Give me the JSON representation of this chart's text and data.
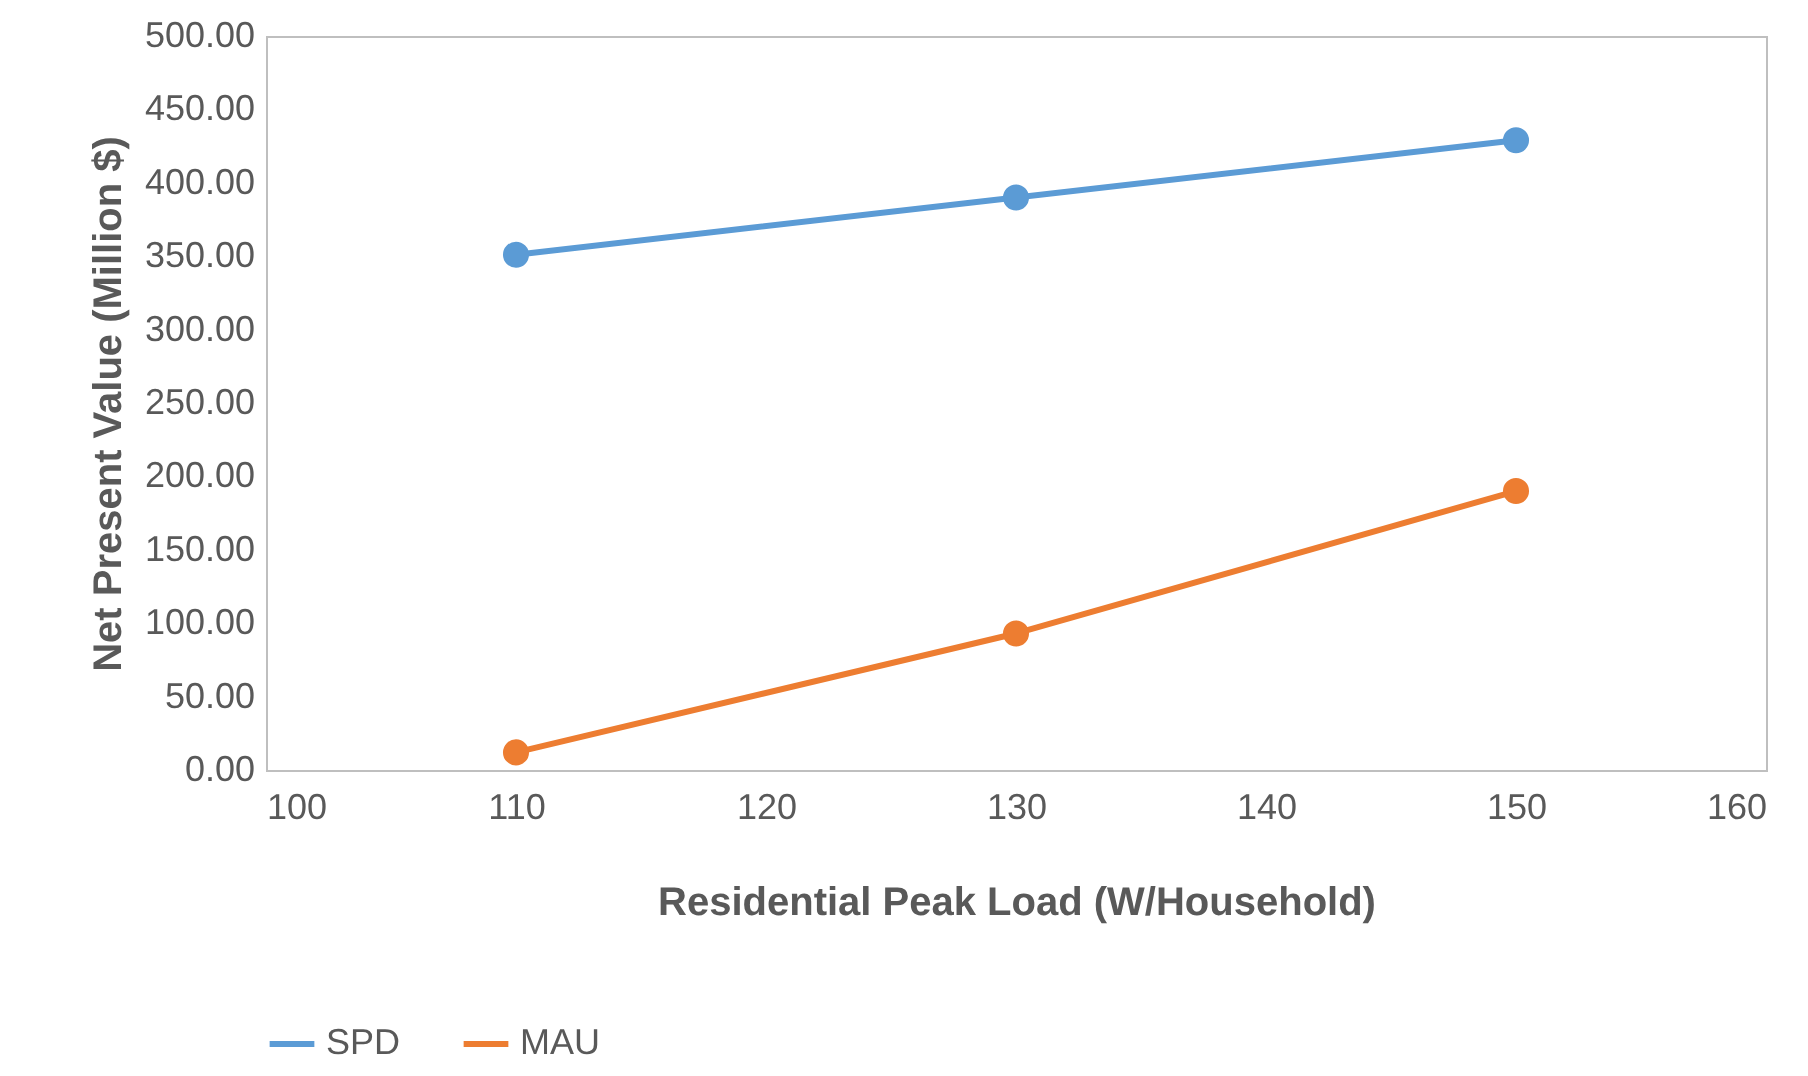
{
  "chart_data": {
    "type": "line",
    "xlabel": "Residential Peak Load (W/Household)",
    "ylabel": "Net Present Value (Million $)",
    "x": [
      110,
      130,
      150
    ],
    "series": [
      {
        "name": "SPD",
        "color": "#5b9bd5",
        "values": [
          351,
          390,
          429
        ]
      },
      {
        "name": "MAU",
        "color": "#ed7d31",
        "values": [
          12,
          93,
          190
        ]
      }
    ],
    "xlim": [
      100,
      160
    ],
    "xticks": [
      100,
      110,
      120,
      130,
      140,
      150,
      160
    ],
    "ylim": [
      0,
      500
    ],
    "yticks": [
      {
        "value": 0,
        "label": "0.00"
      },
      {
        "value": 50,
        "label": "50.00"
      },
      {
        "value": 100,
        "label": "100.00"
      },
      {
        "value": 150,
        "label": "150.00"
      },
      {
        "value": 200,
        "label": "200.00"
      },
      {
        "value": 250,
        "label": "250.00"
      },
      {
        "value": 300,
        "label": "300.00"
      },
      {
        "value": 350,
        "label": "350.00"
      },
      {
        "value": 400,
        "label": "400.00"
      },
      {
        "value": 450,
        "label": "450.00"
      },
      {
        "value": 500,
        "label": "500.00"
      }
    ],
    "grid": false,
    "legend": "bottom",
    "marker": "circle",
    "line_style": "solid"
  }
}
